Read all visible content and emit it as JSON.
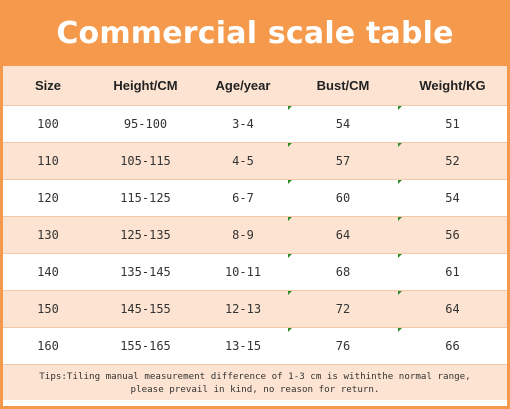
{
  "title": "Commercial scale table",
  "columns": [
    "Size",
    "Height/CM",
    "Age/year",
    "Bust/CM",
    "Weight/KG"
  ],
  "rows": [
    [
      "100",
      "95-100",
      "3-4",
      "54",
      "51"
    ],
    [
      "110",
      "105-115",
      "4-5",
      "57",
      "52"
    ],
    [
      "120",
      "115-125",
      "6-7",
      "60",
      "54"
    ],
    [
      "130",
      "125-135",
      "8-9",
      "64",
      "56"
    ],
    [
      "140",
      "135-145",
      "10-11",
      "68",
      "61"
    ],
    [
      "150",
      "145-155",
      "12-13",
      "72",
      "64"
    ],
    [
      "160",
      "155-165",
      "13-15",
      "76",
      "66"
    ]
  ],
  "tips": {
    "line1": "Tips:Tiling manual measurement difference of 1-3 cm is withinthe normal range,",
    "line2": "please prevail in kind, no reason for return."
  },
  "colors": {
    "banner": "#f59a4c",
    "row_shade": "#fde4d2",
    "row_plain": "#ffffff",
    "corner_mark": "#2e8b2e"
  }
}
